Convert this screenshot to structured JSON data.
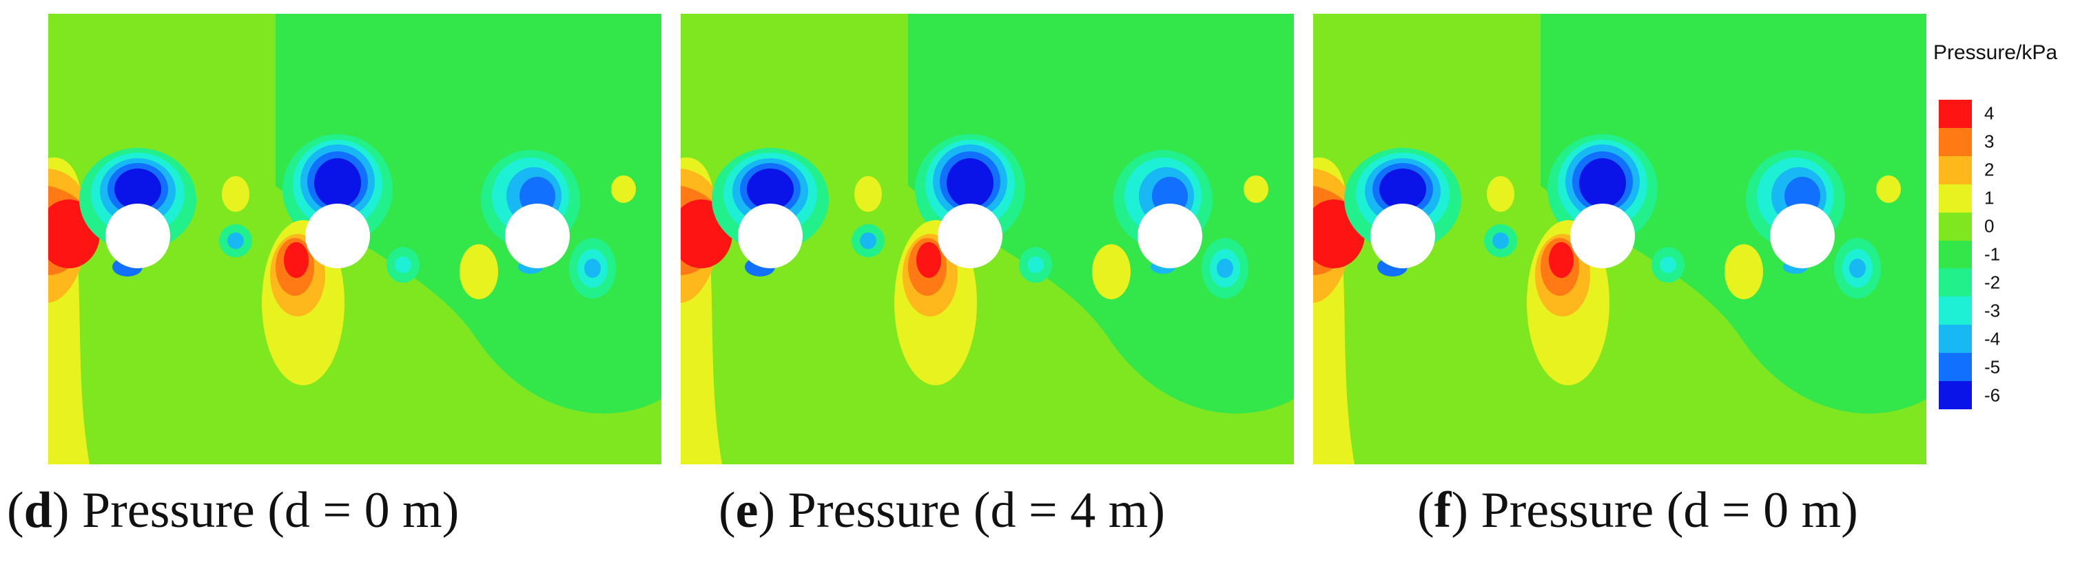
{
  "colors": {
    "background_field": "#7ee71f",
    "c4": "#ff1414",
    "c3": "#ff7a14",
    "c2": "#ffb81c",
    "c1": "#e7f21e",
    "c0": "#7ee71f",
    "cm1": "#33e64a",
    "cm2": "#22f08a",
    "cm3": "#1ef0d5",
    "cm4": "#18b8f5",
    "cm5": "#1270ff",
    "cm6": "#0a14e8"
  },
  "colorbar": {
    "title": "Pressure/kPa",
    "levels": [
      {
        "label": "4",
        "color": "#ff1414"
      },
      {
        "label": "3",
        "color": "#ff7a14"
      },
      {
        "label": "2",
        "color": "#ffb81c"
      },
      {
        "label": "1",
        "color": "#e7f21e"
      },
      {
        "label": "0",
        "color": "#7ee71f"
      },
      {
        "label": "-1",
        "color": "#33e64a"
      },
      {
        "label": "-2",
        "color": "#22f08a"
      },
      {
        "label": "-3",
        "color": "#1ef0d5"
      },
      {
        "label": "-4",
        "color": "#18b8f5"
      },
      {
        "label": "-5",
        "color": "#1270ff"
      },
      {
        "label": "-6",
        "color": "#0a14e8"
      }
    ]
  },
  "panels": [
    {
      "letter": "d",
      "caption": " Pressure (d = 0 m)"
    },
    {
      "letter": "e",
      "caption": " Pressure (d = 4 m)"
    },
    {
      "letter": "f",
      "caption": " Pressure (d = 0 m)"
    }
  ]
}
